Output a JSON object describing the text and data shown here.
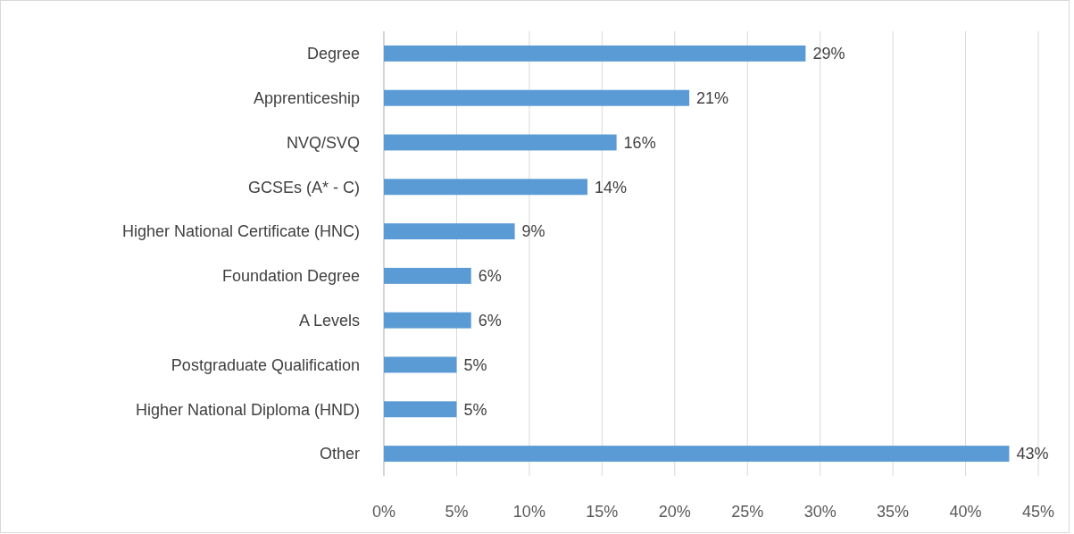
{
  "chart_data": {
    "type": "bar",
    "orientation": "horizontal",
    "categories": [
      "Degree",
      "Apprenticeship",
      "NVQ/SVQ",
      "GCSEs (A* - C)",
      "Higher National Certificate (HNC)",
      "Foundation Degree",
      "A Levels",
      "Postgraduate Qualification",
      "Higher National Diploma (HND)",
      "Other"
    ],
    "values": [
      29,
      21,
      16,
      14,
      9,
      6,
      6,
      5,
      5,
      43
    ],
    "value_labels": [
      "29%",
      "21%",
      "16%",
      "14%",
      "9%",
      "6%",
      "6%",
      "5%",
      "5%",
      "43%"
    ],
    "color": "#5b9bd5",
    "xlim": [
      0,
      45
    ],
    "xticks": [
      {
        "value": 0,
        "label": "0%"
      },
      {
        "value": 5,
        "label": "5%"
      },
      {
        "value": 10,
        "label": "10%"
      },
      {
        "value": 15,
        "label": "15%"
      },
      {
        "value": 20,
        "label": "20%"
      },
      {
        "value": 25,
        "label": "25%"
      },
      {
        "value": 30,
        "label": "30%"
      },
      {
        "value": 35,
        "label": "35%"
      },
      {
        "value": 40,
        "label": "40%"
      },
      {
        "value": 45,
        "label": "45%"
      }
    ],
    "grid": "x"
  }
}
